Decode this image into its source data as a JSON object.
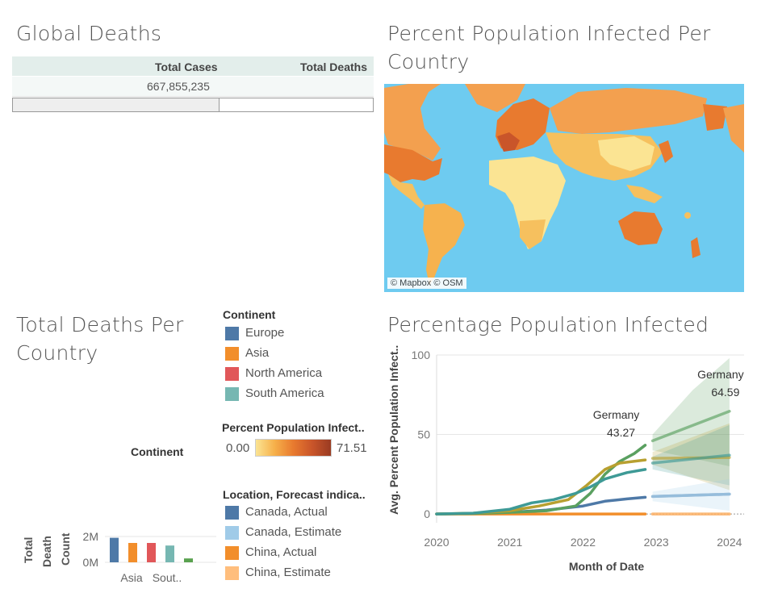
{
  "global_deaths": {
    "title": "Global Deaths",
    "col_cases": "Total Cases",
    "col_deaths": "Total Deaths",
    "total_cases": "667,855,235"
  },
  "map_panel": {
    "title_line1": "Percent Population Infected Per",
    "title_line2": "Country",
    "credit": "© Mapbox © OSM"
  },
  "deaths_panel": {
    "title_line1": "Total Deaths Per",
    "title_line2": "Country",
    "header": "Continent",
    "ylabel_1": "Total",
    "ylabel_2": "Death",
    "ylabel_3": "Count"
  },
  "legend_continent": {
    "title": "Continent",
    "items": [
      {
        "label": "Europe",
        "color": "#4e79a7"
      },
      {
        "label": "Asia",
        "color": "#f28e2b"
      },
      {
        "label": "North America",
        "color": "#e15759"
      },
      {
        "label": "South America",
        "color": "#76b7b2"
      }
    ]
  },
  "legend_percent": {
    "title": "Percent Population Infect..",
    "min": "0.00",
    "max": "71.51"
  },
  "legend_forecast": {
    "title": "Location, Forecast indica..",
    "items": [
      {
        "label": "Canada, Actual",
        "color": "#4e79a7"
      },
      {
        "label": "Canada, Estimate",
        "color": "#a0cbe8"
      },
      {
        "label": "China, Actual",
        "color": "#f28e2b"
      },
      {
        "label": "China, Estimate",
        "color": "#ffbe7d"
      }
    ]
  },
  "line_panel": {
    "title": "Percentage Population Infected"
  },
  "chart_data": [
    {
      "type": "bar",
      "xlabel": "",
      "ylabel": "Total Death Count",
      "yticks": [
        "2M",
        "0M"
      ],
      "xticks": [
        "Asia",
        "Sout.."
      ],
      "ylim": [
        0,
        2500000
      ],
      "series": [
        {
          "values": [
            1900000,
            1500000,
            1500000,
            1300000,
            300000
          ],
          "colors": [
            "#4e79a7",
            "#f28e2b",
            "#e15759",
            "#76b7b2",
            "#59a14f"
          ]
        }
      ]
    },
    {
      "type": "line",
      "xlabel": "Month of Date",
      "ylabel": "Avg. Percent Population Infect..",
      "xlim": [
        2020,
        2024.2
      ],
      "ylim": [
        -3,
        100
      ],
      "yticks": [
        0,
        50,
        100
      ],
      "xticks": [
        2020,
        2021,
        2022,
        2023,
        2024
      ],
      "series": [
        {
          "color": "#4e79a7",
          "actual": [
            [
              2020,
              0
            ],
            [
              2020.5,
              0.3
            ],
            [
              2021,
              1
            ],
            [
              2021.5,
              2.5
            ],
            [
              2022,
              5
            ],
            [
              2022.3,
              8
            ],
            [
              2022.6,
              9.5
            ],
            [
              2022.85,
              10.5
            ]
          ],
          "estimate": [
            [
              2022.95,
              11
            ],
            [
              2024,
              12.5
            ]
          ]
        },
        {
          "color": "#f28e2b",
          "actual": [
            [
              2020,
              0
            ],
            [
              2021,
              0
            ],
            [
              2022,
              0
            ],
            [
              2022.85,
              0
            ]
          ],
          "estimate": [
            [
              2022.95,
              0
            ],
            [
              2024,
              0
            ]
          ]
        },
        {
          "color": "#5aa060",
          "actual": [
            [
              2020,
              0
            ],
            [
              2020.5,
              0.3
            ],
            [
              2021,
              1
            ],
            [
              2021.5,
              2
            ],
            [
              2021.9,
              5
            ],
            [
              2022.1,
              13
            ],
            [
              2022.3,
              25
            ],
            [
              2022.5,
              33
            ],
            [
              2022.7,
              38
            ],
            [
              2022.85,
              43.27
            ]
          ],
          "estimate": [
            [
              2022.95,
              46
            ],
            [
              2024,
              64.59
            ]
          ],
          "band": [
            [
              2022.95,
              40,
              50
            ],
            [
              2023.5,
              35,
              78
            ],
            [
              2024,
              30,
              98
            ]
          ]
        },
        {
          "color": "#b8a030",
          "actual": [
            [
              2020,
              0
            ],
            [
              2020.5,
              0.5
            ],
            [
              2021,
              2
            ],
            [
              2021.4,
              5
            ],
            [
              2021.8,
              9
            ],
            [
              2022.05,
              18
            ],
            [
              2022.3,
              28
            ],
            [
              2022.5,
              32
            ],
            [
              2022.85,
              34
            ]
          ],
          "estimate": [
            [
              2022.95,
              35
            ],
            [
              2024,
              35.5
            ]
          ],
          "band": [
            [
              2022.95,
              31,
              39
            ],
            [
              2024,
              15,
              57
            ]
          ]
        },
        {
          "color": "#3e9a96",
          "actual": [
            [
              2020,
              0
            ],
            [
              2020.5,
              0.5
            ],
            [
              2021,
              3
            ],
            [
              2021.3,
              7
            ],
            [
              2021.6,
              9
            ],
            [
              2021.9,
              13
            ],
            [
              2022.1,
              17
            ],
            [
              2022.3,
              22
            ],
            [
              2022.6,
              26
            ],
            [
              2022.85,
              28
            ]
          ],
          "estimate": [
            [
              2022.95,
              32
            ],
            [
              2024,
              37
            ]
          ],
          "band": [
            [
              2022.95,
              28,
              36
            ],
            [
              2024,
              18,
              56
            ]
          ]
        },
        {
          "color": "#ffbe7d",
          "estimate": [
            [
              2022.95,
              0
            ],
            [
              2024,
              0
            ]
          ]
        },
        {
          "color": "#a0cbe8",
          "estimate": [
            [
              2022.95,
              11
            ],
            [
              2024,
              12.5
            ]
          ],
          "band": [
            [
              2022.95,
              8,
              14
            ],
            [
              2024,
              2,
              22
            ]
          ]
        }
      ],
      "annotations": [
        {
          "label": "Germany",
          "value": "43.27",
          "x": 2022.85,
          "y": 43.27
        },
        {
          "label": "Germany",
          "value": "64.59",
          "x": 2024,
          "y": 64.59
        }
      ]
    }
  ]
}
